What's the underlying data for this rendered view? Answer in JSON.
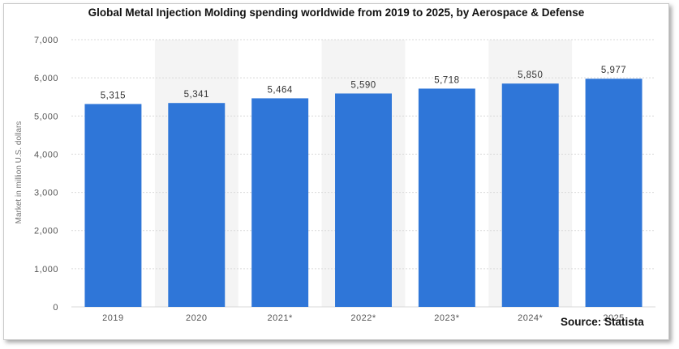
{
  "title": "Global Metal Injection Molding spending worldwide from 2019 to 2025, by Aerospace & Defense",
  "source": "Source: Statista",
  "colors": {
    "bar": "#2f76d8",
    "band": "#f4f4f4",
    "grid": "#d9d9d9",
    "tick": "#555555"
  },
  "chart_data": {
    "type": "bar",
    "title": "Global Metal Injection Molding spending worldwide from 2019 to 2025, by Aerospace & Defense",
    "xlabel": "",
    "ylabel": "Market in million U.S. dollars",
    "categories": [
      "2019",
      "2020",
      "2021*",
      "2022*",
      "2023*",
      "2024*",
      "2025"
    ],
    "values": [
      5315,
      5341,
      5464,
      5590,
      5718,
      5850,
      5977
    ],
    "value_labels": [
      "5,315",
      "5,341",
      "5,464",
      "5,590",
      "5,718",
      "5,850",
      "5,977"
    ],
    "ylim": [
      0,
      7000
    ],
    "yticks": [
      0,
      1000,
      2000,
      3000,
      4000,
      5000,
      6000,
      7000
    ],
    "ytick_labels": [
      "0",
      "1,000",
      "2,000",
      "3,000",
      "4,000",
      "5,000",
      "6,000",
      "7,000"
    ],
    "grid": true,
    "legend": "none"
  }
}
